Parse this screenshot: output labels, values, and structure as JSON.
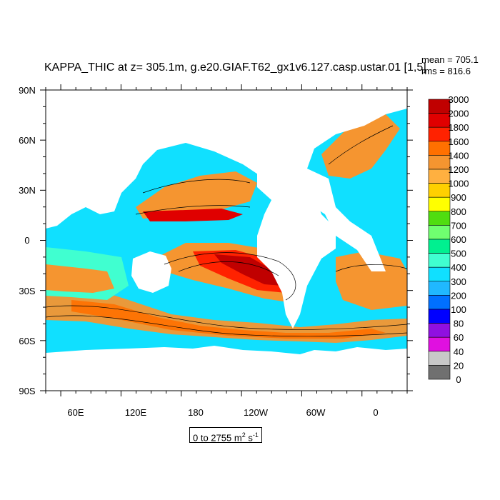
{
  "title": "KAPPA_THIC at z= 305.1m, g.e20.GIAF.T62_gx1v6.127.casp.ustar.01 [1,5]",
  "stats": {
    "mean": "mean = 705.1",
    "rms": "rms = 816.6"
  },
  "units": {
    "range": "0 to 2755",
    "unit": "m",
    "exp1": "2",
    "unit2": " s",
    "exp2": "-1"
  },
  "axes": {
    "lat_labels": [
      "90N",
      "60N",
      "30N",
      "0",
      "30S",
      "60S",
      "90S"
    ],
    "lon_labels": [
      "60E",
      "120E",
      "180",
      "120W",
      "60W",
      "0"
    ]
  },
  "colorbar": {
    "levels": [
      "3000",
      "2000",
      "1800",
      "1600",
      "1400",
      "1200",
      "1000",
      "900",
      "800",
      "700",
      "600",
      "500",
      "400",
      "300",
      "200",
      "100",
      "80",
      "60",
      "40",
      "20",
      "0"
    ],
    "colors": [
      "#c00000",
      "#e00000",
      "#ff2200",
      "#ff7000",
      "#f59530",
      "#ffb040",
      "#ffd000",
      "#ffff00",
      "#50dd10",
      "#70ff70",
      "#00f090",
      "#40ffd0",
      "#10e0ff",
      "#20b8ff",
      "#0070ff",
      "#0000ff",
      "#9010e0",
      "#e010e0",
      "#c8c8c8",
      "#707070"
    ]
  },
  "map_colors": {
    "land": "#ffffff",
    "ocean_low": "#10e0ff",
    "ocean_mid": "#40ffd0",
    "contour": "#000000"
  }
}
